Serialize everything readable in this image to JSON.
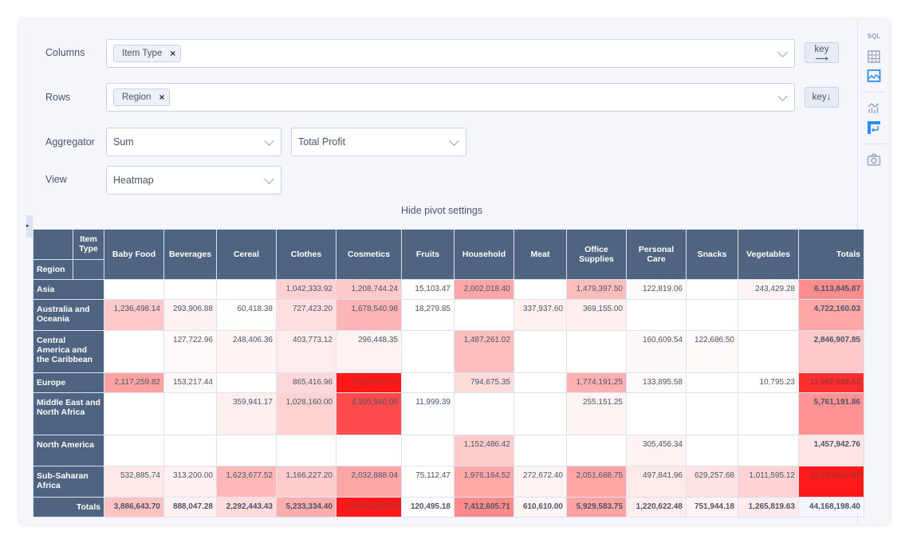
{
  "settings": {
    "columns_label": "Columns",
    "columns_chips": [
      "Item Type"
    ],
    "rows_label": "Rows",
    "rows_chips": [
      "Region"
    ],
    "key_cols_label": "key",
    "key_rows_label": "key",
    "aggregator_label": "Aggregator",
    "aggregator_value": "Sum",
    "field_value": "Total Profit",
    "view_label": "View",
    "view_value": "Heatmap",
    "hide_label": "Hide pivot settings",
    "remove_glyph": "×"
  },
  "sidebar": {
    "icons": [
      "sql-icon",
      "table-icon",
      "image-icon",
      "chart-icon",
      "pivot-icon",
      "camera-icon"
    ],
    "sql_text": "SQL",
    "active_color": "#2b8ef0"
  },
  "heatmap_color": "#ff0000",
  "table": {
    "corner_col_label": "Item Type",
    "corner_row_label": "Region",
    "totals_label": "Totals",
    "columns": [
      "Baby Food",
      "Beverages",
      "Cereal",
      "Clothes",
      "Cosmetics",
      "Fruits",
      "Household",
      "Meat",
      "Office Supplies",
      "Personal Care",
      "Snacks",
      "Vegetables"
    ],
    "rows": [
      {
        "region": "Asia",
        "values": [
          "",
          "",
          "",
          "1,042,333.92",
          "1,208,744.24",
          "15,103.47",
          "2,002,018.40",
          "",
          "1,479,397.50",
          "122,819.06",
          "",
          "243,429.28"
        ],
        "total": "6,113,845.87"
      },
      {
        "region": "Australia and Oceania",
        "values": [
          "1,236,498.14",
          "293,906.88",
          "60,418.38",
          "727,423.20",
          "1,678,540.98",
          "18,279.85",
          "",
          "337,937.60",
          "369,155.00",
          "",
          "",
          ""
        ],
        "total": "4,722,160.03"
      },
      {
        "region": "Central America and the Caribbean",
        "values": [
          "",
          "127,722.96",
          "248,406.36",
          "403,773.12",
          "296,448.35",
          "",
          "1,487,261.02",
          "",
          "",
          "160,609.54",
          "122,686.50",
          ""
        ],
        "total": "2,846,907.85"
      },
      {
        "region": "Europe",
        "values": [
          "2,117,259.82",
          "153,217.44",
          "",
          "865,416.96",
          "5,233,487.00",
          "",
          "794,675.35",
          "",
          "1,774,191.25",
          "133,895.58",
          "",
          "10,795.23"
        ],
        "total": "11,082,938.63"
      },
      {
        "region": "Middle East and North Africa",
        "values": [
          "",
          "",
          "359,941.17",
          "1,028,160.00",
          "4,105,940.05",
          "11,999.39",
          "",
          "",
          "255,151.25",
          "",
          "",
          ""
        ],
        "total": "5,761,191.86"
      },
      {
        "region": "North America",
        "values": [
          "",
          "",
          "",
          "",
          "",
          "",
          "1,152,486.42",
          "",
          "",
          "305,456.34",
          "",
          ""
        ],
        "total": "1,457,942.76"
      },
      {
        "region": "Sub-Saharan Africa",
        "values": [
          "532,885.74",
          "313,200.00",
          "1,623,677.52",
          "1,166,227.20",
          "2,032,888.04",
          "75,112.47",
          "1,976,164.52",
          "272,672.40",
          "2,051,688.75",
          "497,841.96",
          "629,257.68",
          "1,011,595.12"
        ],
        "total": "12,183,211.40"
      }
    ],
    "column_totals": [
      "3,886,643.70",
      "888,047.28",
      "2,292,443.43",
      "5,233,334.40",
      "14,556,048.66",
      "120,495.18",
      "7,412,605.71",
      "610,610.00",
      "5,929,583.75",
      "1,220,622.48",
      "751,944.18",
      "1,265,819.63"
    ],
    "grand_total": "44,168,198.40"
  }
}
